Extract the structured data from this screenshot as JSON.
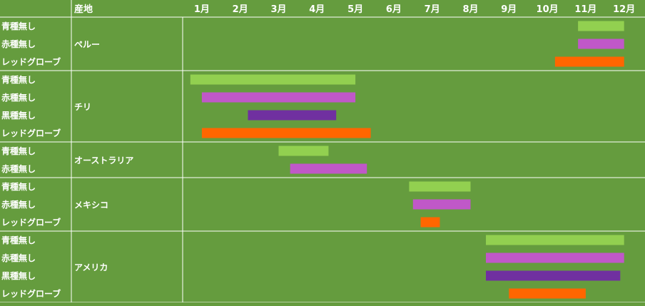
{
  "chart_data": {
    "type": "gantt",
    "header": {
      "origin_label": "産地"
    },
    "months": [
      "1月",
      "2月",
      "3月",
      "4月",
      "5月",
      "6月",
      "7月",
      "8月",
      "9月",
      "10月",
      "11月",
      "12月"
    ],
    "variety_colors": {
      "青種無し": "#92d050",
      "赤種無し": "#c058c8",
      "黒種無し": "#7030a0",
      "レッドグローブ": "#ff6600"
    },
    "background_color": "#659c3e",
    "grid_color": "#ffffff",
    "origins": [
      {
        "name": "ペルー",
        "rows": [
          {
            "variety": "青種無し",
            "start": 11.3,
            "end": 12.5
          },
          {
            "variety": "赤種無し",
            "start": 11.3,
            "end": 12.5
          },
          {
            "variety": "レッドグローブ",
            "start": 10.7,
            "end": 12.5
          }
        ]
      },
      {
        "name": "チリ",
        "rows": [
          {
            "variety": "青種無し",
            "start": 1.2,
            "end": 5.5
          },
          {
            "variety": "赤種無し",
            "start": 1.5,
            "end": 5.5
          },
          {
            "variety": "黒種無し",
            "start": 2.7,
            "end": 5.0
          },
          {
            "variety": "レッドグローブ",
            "start": 1.5,
            "end": 5.9
          }
        ]
      },
      {
        "name": "オーストラリア",
        "rows": [
          {
            "variety": "青種無し",
            "start": 3.5,
            "end": 4.8
          },
          {
            "variety": "赤種無し",
            "start": 3.8,
            "end": 5.8
          }
        ]
      },
      {
        "name": "メキシコ",
        "rows": [
          {
            "variety": "青種無し",
            "start": 6.9,
            "end": 8.5
          },
          {
            "variety": "赤種無し",
            "start": 7.0,
            "end": 8.5
          },
          {
            "variety": "レッドグローブ",
            "start": 7.2,
            "end": 7.7
          }
        ]
      },
      {
        "name": "アメリカ",
        "rows": [
          {
            "variety": "青種無し",
            "start": 8.9,
            "end": 12.5
          },
          {
            "variety": "赤種無し",
            "start": 8.9,
            "end": 12.5
          },
          {
            "variety": "黒種無し",
            "start": 8.9,
            "end": 12.4
          },
          {
            "variety": "レッドグローブ",
            "start": 9.5,
            "end": 11.5
          }
        ]
      }
    ]
  }
}
